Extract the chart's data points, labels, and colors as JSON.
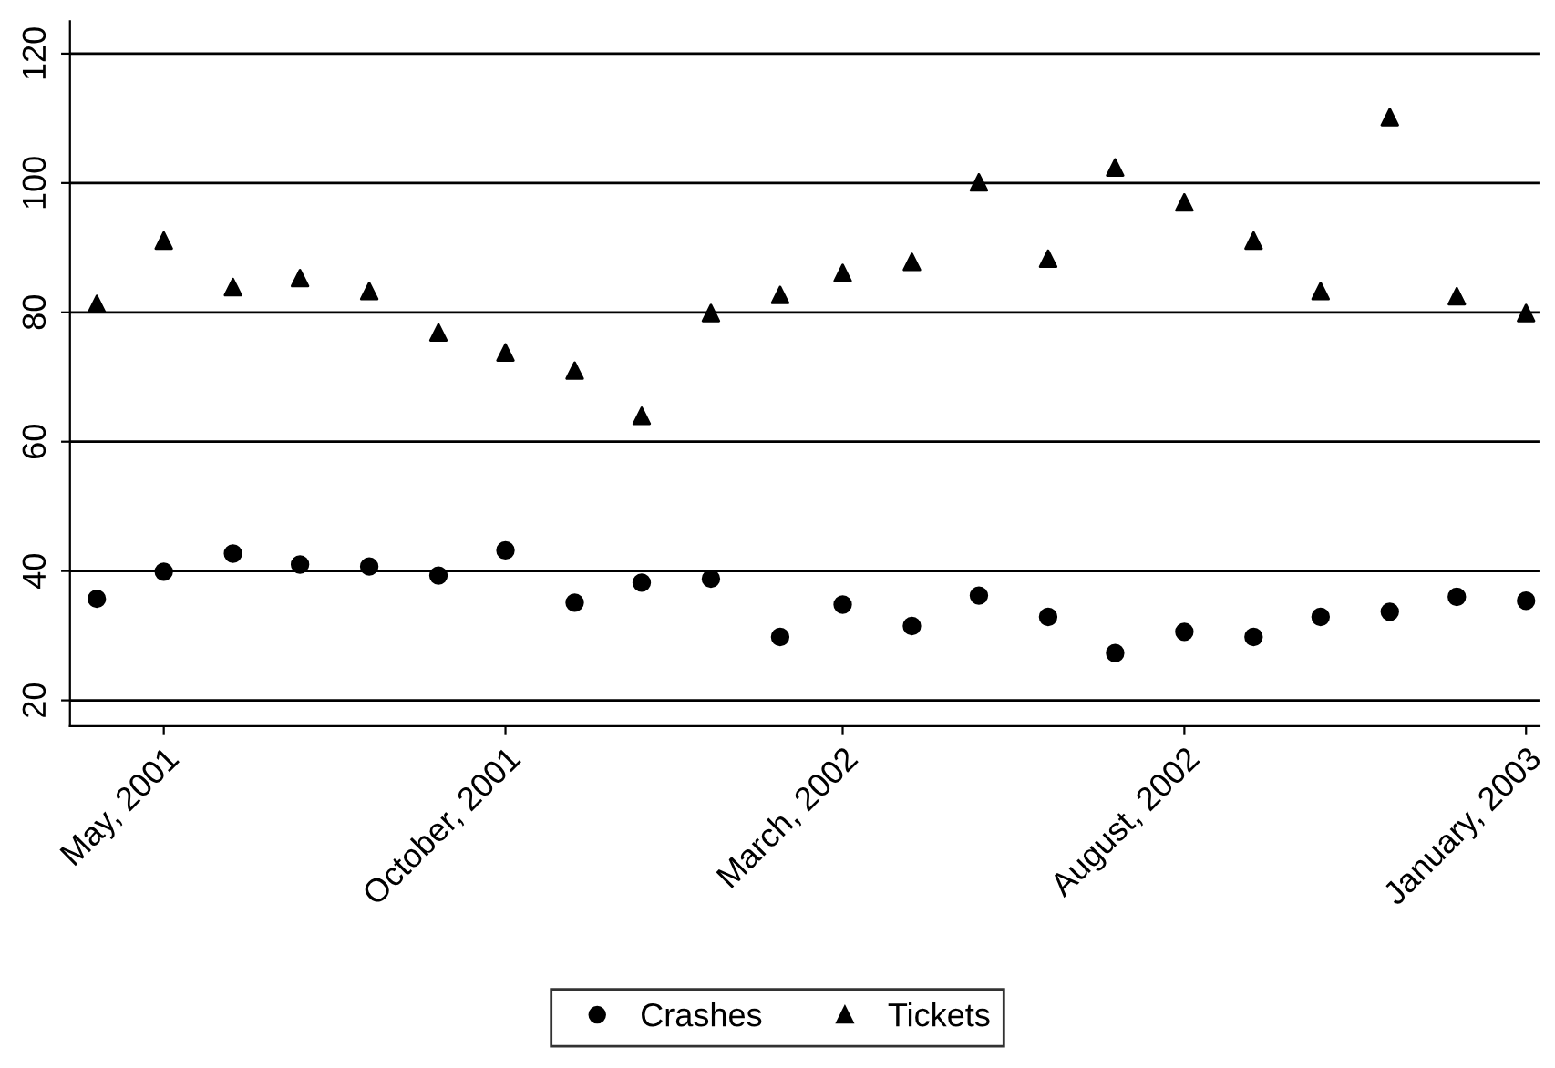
{
  "chart_data": {
    "type": "scatter",
    "x": [
      "2001-04",
      "2001-05",
      "2001-06",
      "2001-07",
      "2001-08",
      "2001-09",
      "2001-10",
      "2001-11",
      "2001-12",
      "2002-01",
      "2002-02",
      "2002-03",
      "2002-04",
      "2002-05",
      "2002-06",
      "2002-07",
      "2002-08",
      "2002-09",
      "2002-10",
      "2002-11",
      "2002-12",
      "2003-01"
    ],
    "series": [
      {
        "name": "Crashes",
        "color": "#000000",
        "marker": "circle",
        "values": [
          35.7,
          39.9,
          42.7,
          41.0,
          40.7,
          39.3,
          43.2,
          35.1,
          38.2,
          38.8,
          29.8,
          34.8,
          31.5,
          36.2,
          32.9,
          27.3,
          30.6,
          29.8,
          32.9,
          33.7,
          36.0,
          35.4
        ]
      },
      {
        "name": "Tickets",
        "color": "#000000",
        "marker": "triangle",
        "values": [
          81.3,
          91.1,
          83.9,
          85.3,
          83.3,
          76.9,
          73.8,
          71.0,
          64.0,
          79.9,
          82.7,
          86.1,
          87.8,
          100.1,
          88.3,
          102.4,
          97.0,
          91.1,
          83.3,
          110.2,
          82.5,
          79.9
        ]
      }
    ],
    "xlim": [
      "2001-03-20",
      "2003-01-07"
    ],
    "xticks": [
      {
        "value": "2001-05",
        "label": "May, 2001"
      },
      {
        "value": "2001-10",
        "label": "October, 2001"
      },
      {
        "value": "2002-03",
        "label": "March, 2002"
      },
      {
        "value": "2002-08",
        "label": "August, 2002"
      },
      {
        "value": "2003-01",
        "label": "January, 2003"
      }
    ],
    "ylim": [
      16,
      125
    ],
    "yticks": [
      20,
      40,
      60,
      80,
      100,
      120
    ],
    "grid": "y",
    "legend": "bottom"
  }
}
